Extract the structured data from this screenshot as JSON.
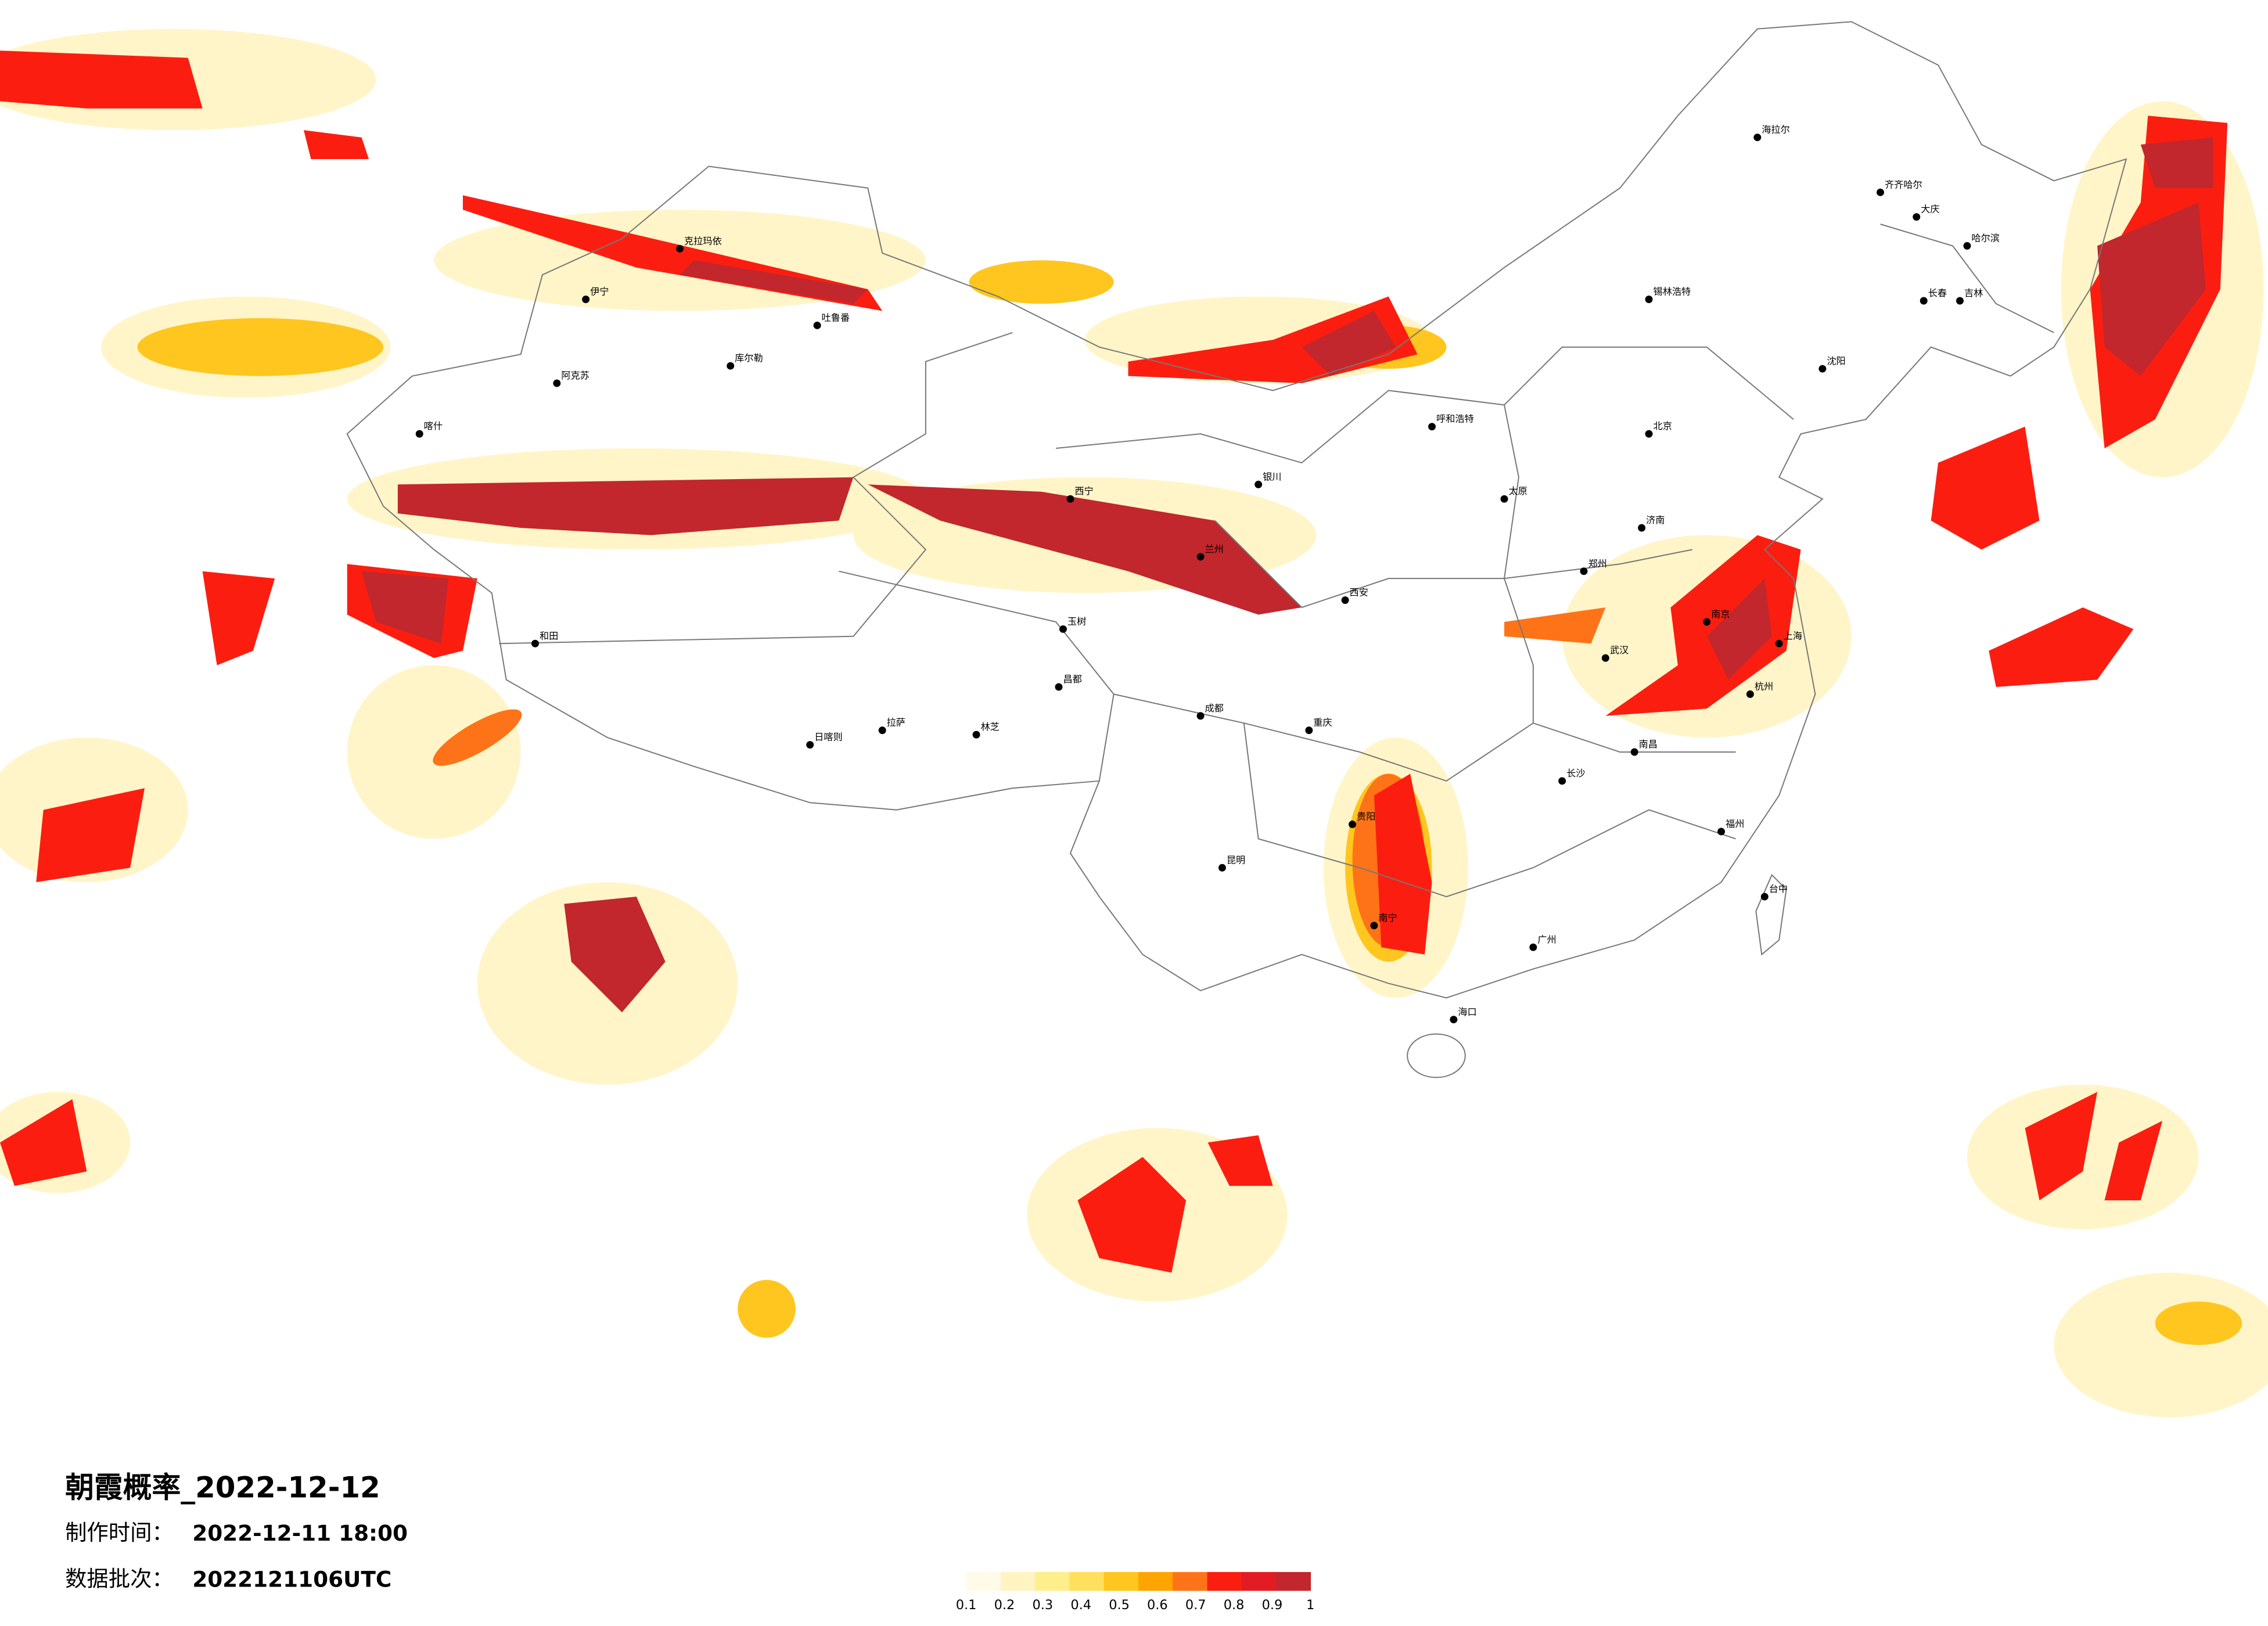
{
  "header": {
    "title": "朝霞概率_2022-12-12",
    "made_time_label": "制作时间：",
    "made_time": "2022-12-11 18:00",
    "batch_label": "数据批次：",
    "batch": "2022121106UTC"
  },
  "legend": {
    "ticks": [
      0.1,
      0.2,
      0.3,
      0.4,
      0.5,
      0.6,
      0.7,
      0.8,
      0.9,
      1
    ],
    "colors": [
      "#fffbe8",
      "#fff4c2",
      "#ffee8c",
      "#ffdf5e",
      "#ffc61f",
      "#ffa400",
      "#ff7318",
      "#fb1e10",
      "#e21c22",
      "#c1272d"
    ]
  },
  "cities": [
    "海拉尔",
    "齐齐哈尔",
    "大庆",
    "哈尔滨",
    "长春",
    "吉林",
    "锡林浩特",
    "克拉玛依",
    "伊宁",
    "阿克苏",
    "库尔勒",
    "吐鲁番",
    "喀什",
    "和田",
    "日喀则",
    "拉萨",
    "林芝",
    "西宁",
    "玉树",
    "昌都",
    "成都",
    "重庆",
    "贵阳",
    "昆明",
    "南宁",
    "海口",
    "广州",
    "长沙",
    "武汉",
    "南昌",
    "郑州",
    "西安",
    "兰州",
    "银川",
    "北京",
    "太原",
    "济南",
    "南京",
    "上海",
    "杭州",
    "福州",
    "台中",
    "沈阳",
    "呼和浩特"
  ]
}
